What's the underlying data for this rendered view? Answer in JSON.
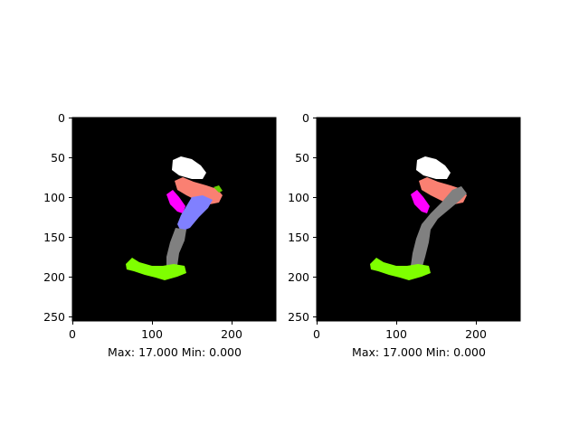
{
  "panels": [
    {
      "name": "left",
      "x_ticks": [
        "0",
        "100",
        "200"
      ],
      "y_ticks": [
        "0",
        "50",
        "100",
        "150",
        "200",
        "250"
      ],
      "caption": "Max: 17.000 Min: 0.000"
    },
    {
      "name": "right",
      "x_ticks": [
        "0",
        "100",
        "200"
      ],
      "y_ticks": [
        "0",
        "50",
        "100",
        "150",
        "200",
        "250"
      ],
      "caption": "Max: 17.000 Min: 0.000"
    }
  ],
  "colors": {
    "background": "#000000",
    "white_segment": "#ffffff",
    "salmon_segment": "#fa8072",
    "magenta_segment": "#ff00ff",
    "blue_segment": "#8080ff",
    "gray_segment": "#808080",
    "green_segment": "#7fff00",
    "green_tip": "#66cc00"
  }
}
